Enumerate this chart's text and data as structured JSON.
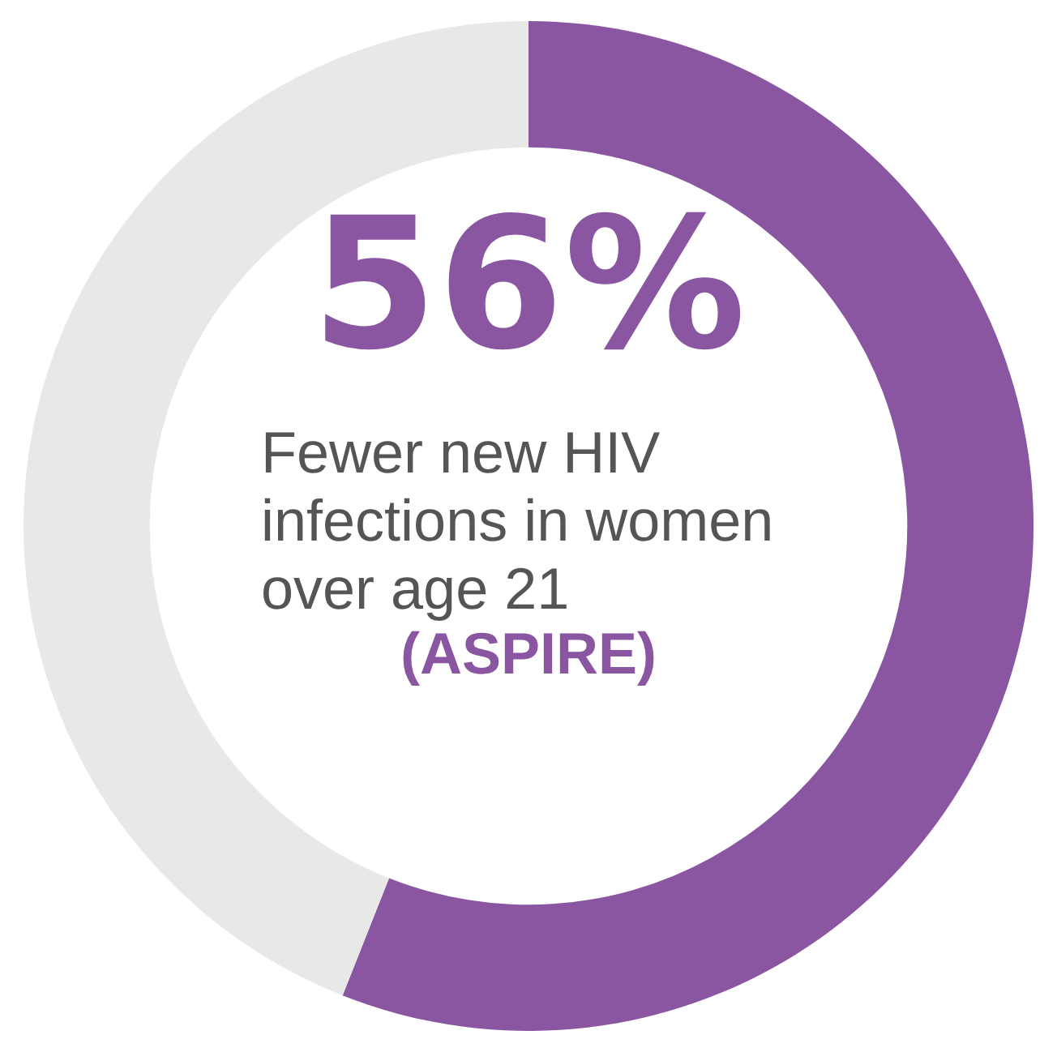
{
  "chart_data": {
    "type": "donut",
    "categories": [
      null,
      null
    ],
    "values": [
      56,
      44
    ],
    "colors": [
      "#8a56a2",
      "#e8e8e8"
    ],
    "value_labels": [
      "56%",
      null
    ],
    "annotations": [
      "Fewer new HIV infections in women over age 21",
      "(ASPIRE)"
    ]
  }
}
